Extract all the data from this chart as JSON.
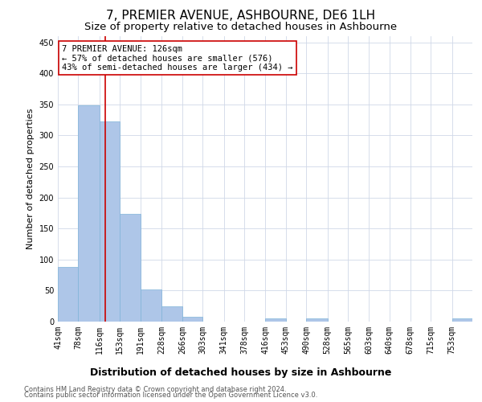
{
  "title": "7, PREMIER AVENUE, ASHBOURNE, DE6 1LH",
  "subtitle": "Size of property relative to detached houses in Ashbourne",
  "xlabel": "Distribution of detached houses by size in Ashbourne",
  "ylabel": "Number of detached properties",
  "bar_edges": [
    41,
    78,
    116,
    153,
    191,
    228,
    266,
    303,
    341,
    378,
    416,
    453,
    490,
    528,
    565,
    603,
    640,
    678,
    715,
    753,
    790
  ],
  "bar_heights": [
    88,
    348,
    323,
    174,
    52,
    25,
    8,
    0,
    0,
    0,
    5,
    0,
    5,
    0,
    0,
    0,
    0,
    0,
    0,
    5
  ],
  "bar_color": "#aec6e8",
  "bar_edge_color": "#7fb3d9",
  "property_size": 126,
  "property_line_color": "#cc0000",
  "annotation_line1": "7 PREMIER AVENUE: 126sqm",
  "annotation_line2": "← 57% of detached houses are smaller (576)",
  "annotation_line3": "43% of semi-detached houses are larger (434) →",
  "annotation_box_color": "#ffffff",
  "annotation_box_edge_color": "#cc0000",
  "ylim": [
    0,
    460
  ],
  "yticks": [
    0,
    50,
    100,
    150,
    200,
    250,
    300,
    350,
    400,
    450
  ],
  "footer_line1": "Contains HM Land Registry data © Crown copyright and database right 2024.",
  "footer_line2": "Contains public sector information licensed under the Open Government Licence v3.0.",
  "bg_color": "#ffffff",
  "grid_color": "#d0d8e8",
  "title_fontsize": 11,
  "subtitle_fontsize": 9.5,
  "xlabel_fontsize": 9,
  "ylabel_fontsize": 8,
  "tick_fontsize": 7,
  "annotation_fontsize": 7.5,
  "footer_fontsize": 6
}
